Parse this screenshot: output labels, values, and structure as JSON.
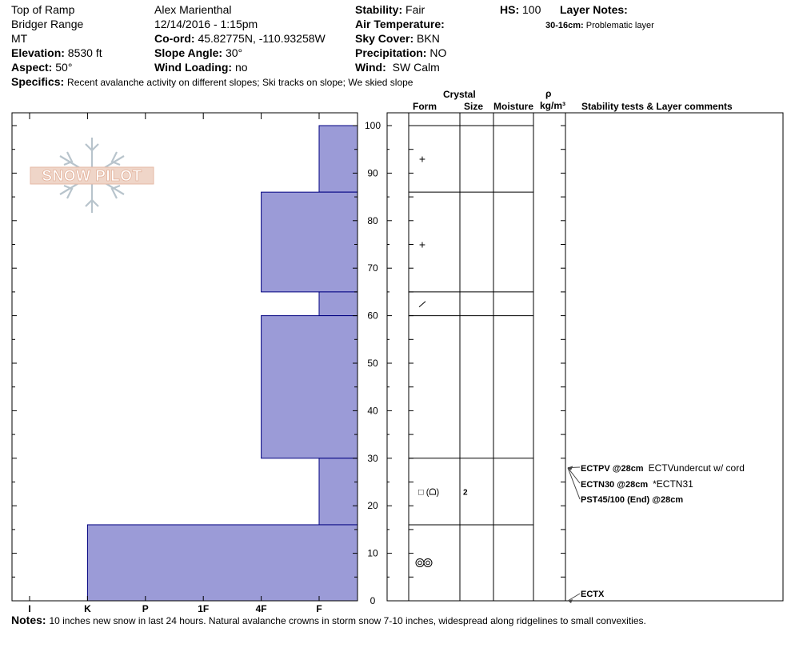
{
  "header": {
    "location": "Top of Ramp",
    "range": "Bridger Range",
    "state": "MT",
    "elevation_label": "Elevation:",
    "elevation_value": "8530 ft",
    "aspect_label": "Aspect:",
    "aspect_value": "50°",
    "observer": "Alex Marienthal",
    "datetime": "12/14/2016 - 1:15pm",
    "coord_label": "Co-ord:",
    "coord_value": "45.82775N, -110.93258W",
    "slope_label": "Slope Angle:",
    "slope_value": "30°",
    "wind_loading_label": "Wind Loading:",
    "wind_loading_value": "no",
    "stability_label": "Stability:",
    "stability_value": "Fair",
    "air_temp_label": "Air Temperature:",
    "air_temp_value": "",
    "sky_label": "Sky Cover:",
    "sky_value": "BKN",
    "precip_label": "Precipitation:",
    "precip_value": "NO",
    "wind_label": "Wind:",
    "wind_value": "SW Calm",
    "hs_label": "HS:",
    "hs_value": "100",
    "layer_notes_label": "Layer Notes:",
    "layer_note_range": "30-16cm:",
    "layer_note_text": "Problematic layer",
    "specifics_label": "Specifics:",
    "specifics_text": "Recent avalanche activity on different slopes;  Ski tracks on slope;  We skied slope"
  },
  "notes": {
    "label": "Notes:",
    "text": "10 inches new snow in last 24 hours. Natural avalanche crowns in storm snow 7-10 inches, widespread along ridgelines to small convexities."
  },
  "logo": {
    "text": "SNOW PILOT"
  },
  "table_headers": {
    "crystal": "Crystal",
    "form": "Form",
    "size": "Size",
    "moisture": "Moisture",
    "rho": "ρ",
    "density_unit": "kg/m³",
    "tests": "Stability tests & Layer comments"
  },
  "colors": {
    "bar_fill": "#9b9bd7",
    "bar_stroke": "#000080"
  },
  "chart_data": {
    "type": "bar",
    "orientation": "horizontal-hardness-profile",
    "hardness_ticks": [
      "I",
      "K",
      "P",
      "1F",
      "4F",
      "F"
    ],
    "hardness_scale_positions": {
      "I": 1,
      "K": 2,
      "P": 3,
      "1F": 4,
      "4F": 5,
      "F": 6
    },
    "ylim": [
      0,
      100
    ],
    "y_ticks": [
      0,
      10,
      20,
      30,
      40,
      50,
      60,
      70,
      80,
      90,
      100
    ],
    "layers": [
      {
        "bottom": 86,
        "top": 100,
        "hardness": "F"
      },
      {
        "bottom": 65,
        "top": 86,
        "hardness": "4F"
      },
      {
        "bottom": 60,
        "top": 65,
        "hardness": "F"
      },
      {
        "bottom": 30,
        "top": 60,
        "hardness": "4F"
      },
      {
        "bottom": 16,
        "top": 30,
        "hardness": "F"
      },
      {
        "bottom": 0,
        "top": 16,
        "hardness": "K"
      }
    ],
    "layer_boundaries": [
      100,
      86,
      65,
      60,
      30,
      16
    ],
    "crystals": [
      {
        "height": 93,
        "form": "+",
        "size": ""
      },
      {
        "height": 75,
        "form": "+",
        "size": ""
      },
      {
        "height": 62.5,
        "form": "/",
        "size": ""
      },
      {
        "height": 23,
        "form": "□ (ᗝ)",
        "size": "2"
      },
      {
        "height": 8,
        "form": "◎◎",
        "size": ""
      }
    ],
    "tests": [
      {
        "text": "ECTPV @28cm",
        "comment": "ECTVundercut w/ cord",
        "arrow_height": 28
      },
      {
        "text": "ECTN30 @28cm",
        "comment": "*ECTN31",
        "arrow_height": 28
      },
      {
        "text": "PST45/100 (End) @28cm",
        "comment": "",
        "arrow_height": 28
      },
      {
        "text": "ECTX",
        "comment": "",
        "arrow_height": 0
      }
    ]
  }
}
